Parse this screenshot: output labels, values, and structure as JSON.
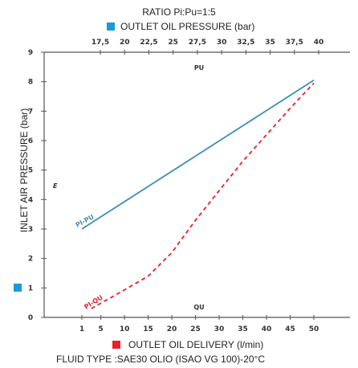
{
  "chart_data": {
    "type": "line",
    "title": "RATIO Pi:Pu=1:5",
    "top_axis": {
      "label": "OUTLET OIL PRESSURE (bar)",
      "ticks": [
        "17,5",
        "20",
        "22,5",
        "25",
        "27,5",
        "30",
        "32,5",
        "35",
        "37,5",
        "40"
      ],
      "marker_color": "#1a9ad6"
    },
    "bottom_axis": {
      "label": "OUTLET OIL DELIVERY (l/min)",
      "ticks": [
        "1",
        "5",
        "10",
        "15",
        "20",
        "25",
        "30",
        "35",
        "40",
        "45",
        "50"
      ],
      "marker_color": "#e8202a"
    },
    "ylabel": "INLET AIR PRESSURE (bar)",
    "ylim": [
      0,
      9
    ],
    "yticks": [
      "0",
      "1",
      "2",
      "3",
      "4",
      "5",
      "6",
      "7",
      "8",
      "9"
    ],
    "fluid_type": "FLUID TYPE :SAE30 OLIO (ISAO VG 100)-20°C",
    "region_labels": {
      "pu": "PU",
      "qu": "QU",
      "e": "E"
    },
    "series": [
      {
        "name": "Pi-Pu",
        "color": "#3a8fb5",
        "style": "solid",
        "points": [
          [
            1,
            3.0
          ],
          [
            50,
            8.05
          ]
        ]
      },
      {
        "name": "Pi-Qu",
        "color": "#e8202a",
        "style": "dashed",
        "points": [
          [
            3,
            0.3
          ],
          [
            8,
            0.75
          ],
          [
            15,
            1.4
          ],
          [
            20,
            2.2
          ],
          [
            25,
            3.3
          ],
          [
            30,
            4.3
          ],
          [
            35,
            5.3
          ],
          [
            40,
            6.2
          ],
          [
            45,
            7.1
          ],
          [
            50,
            7.95
          ]
        ]
      }
    ]
  }
}
